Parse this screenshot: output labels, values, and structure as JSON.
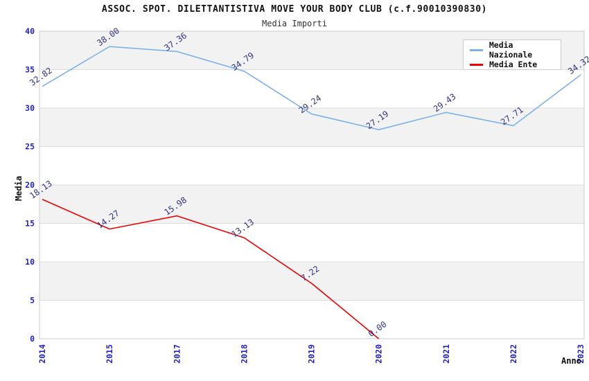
{
  "header": {
    "title": "ASSOC. SPOT. DILETTANTISTIVA MOVE YOUR BODY CLUB (c.f.90010390830)",
    "subtitle": "Media Importi"
  },
  "chart_data": {
    "type": "line",
    "x": [
      "2014",
      "2015",
      "2017",
      "2018",
      "2019",
      "2020",
      "2021",
      "2022",
      "2023"
    ],
    "xlabel": "Anno",
    "ylabel": "Media",
    "ylim": [
      0,
      40
    ],
    "ytick_step": 5,
    "grid": true,
    "legend_position": "top-right",
    "decimals": 2,
    "series": [
      {
        "name": "Media Nazionale",
        "color": "#7db2e8",
        "values": [
          32.82,
          38.0,
          37.36,
          34.79,
          29.24,
          27.19,
          29.43,
          27.71,
          34.32
        ]
      },
      {
        "name": "Media Ente",
        "color": "#ee0000",
        "values": [
          18.13,
          14.27,
          15.98,
          13.13,
          7.22,
          0.0
        ]
      }
    ],
    "colors": {
      "tick_label": "#2222cc",
      "data_label": "#333388",
      "band": "#f2f2f2",
      "band_alt": "#ffffff",
      "grid": "#dcdcdc",
      "border": "#cccccc"
    }
  }
}
